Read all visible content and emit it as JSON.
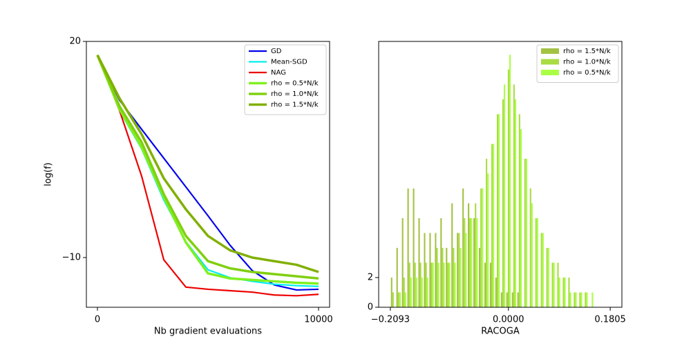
{
  "chart_data": [
    {
      "type": "line",
      "xlabel": "Nb gradient evaluations",
      "ylabel": "log(f)",
      "x": [
        0,
        1000,
        2000,
        3000,
        4000,
        5000,
        6000,
        7000,
        8000,
        9000,
        10000
      ],
      "xlim": [
        -500,
        10500
      ],
      "ylim": [
        -16.9,
        20
      ],
      "xticks": [
        0,
        10000
      ],
      "yticks": [
        {
          "value": -10,
          "label": "−10"
        },
        20
      ],
      "legend": "upper right",
      "series": [
        {
          "name": "GD",
          "color": "#0000ee",
          "values": [
            18.1,
            11.85,
            7.8,
            3.8,
            -0.2,
            -4.2,
            -8.3,
            -11.8,
            -13.8,
            -14.5,
            -14.4
          ]
        },
        {
          "name": "Mean-SGD",
          "color": "#00eeee",
          "values": [
            18.1,
            10.4,
            5.1,
            -2.0,
            -7.8,
            -11.7,
            -12.8,
            -13.3,
            -13.7,
            -13.9,
            -14.0
          ]
        },
        {
          "name": "NAG",
          "color": "#ee0000",
          "values": [
            18.1,
            10.4,
            1.3,
            -10.3,
            -14.1,
            -14.4,
            -14.6,
            -14.8,
            -15.2,
            -15.3,
            -15.1
          ]
        },
        {
          "name": "rho = 0.5*N/k",
          "color": "#80f020",
          "values": [
            18.1,
            10.6,
            5.3,
            -1.6,
            -7.9,
            -12.2,
            -12.9,
            -13.1,
            -13.3,
            -13.5,
            -13.6
          ]
        },
        {
          "name": "rho = 1.0*N/k",
          "color": "#80d010",
          "values": [
            18.1,
            11.0,
            6.0,
            -1.2,
            -7.0,
            -10.5,
            -11.5,
            -12.0,
            -12.3,
            -12.6,
            -12.9
          ]
        },
        {
          "name": "rho = 1.5*N/k",
          "color": "#80b000",
          "values": [
            18.1,
            12.1,
            7.1,
            1.0,
            -3.3,
            -7.0,
            -9.0,
            -10.0,
            -10.5,
            -11.0,
            -12.0
          ]
        }
      ]
    },
    {
      "type": "histogram",
      "xlabel": "RACOGA",
      "bins": [
        -0.2093,
        -0.1996,
        -0.1898,
        -0.1801,
        -0.1703,
        -0.1606,
        -0.1508,
        -0.1411,
        -0.1313,
        -0.1216,
        -0.1119,
        -0.1021,
        -0.0924,
        -0.0826,
        -0.0729,
        -0.0631,
        -0.0534,
        -0.0436,
        -0.0339,
        -0.0242,
        -0.0144,
        -0.0047,
        0.0051,
        0.0148,
        0.0246,
        0.0343,
        0.0441,
        0.0538,
        0.0636,
        0.0733,
        0.083,
        0.0928,
        0.1025,
        0.1123,
        0.122,
        0.1318,
        0.1415,
        0.1513,
        0.161,
        0.1708,
        0.1805
      ],
      "xlim": [
        -0.23,
        0.2012
      ],
      "ylim": [
        0,
        17.9
      ],
      "xticks": [
        {
          "value": -0.2093,
          "label": "−0.2093"
        },
        {
          "value": 0,
          "label": "0.0000"
        },
        {
          "value": 0.1805,
          "label": "0.1805"
        }
      ],
      "yticks": [
        0,
        2
      ],
      "legend": "upper right",
      "series": [
        {
          "name": "rho = 1.5*N/k",
          "color": "#a3c244",
          "values": [
            2,
            4,
            6,
            8,
            8,
            6,
            5,
            5,
            5,
            6,
            4,
            7,
            5,
            8,
            7,
            6,
            4,
            3,
            3,
            2,
            1,
            1,
            1,
            1,
            0,
            0,
            0,
            0,
            0,
            0,
            0,
            0,
            0,
            0,
            0,
            0,
            0,
            0,
            0,
            0
          ]
        },
        {
          "name": "rho = 1.0*N/k",
          "color": "#aadc44",
          "values": [
            1,
            1,
            2,
            3,
            3,
            3,
            3,
            3,
            4,
            4,
            3,
            4,
            5,
            6,
            6,
            7,
            8,
            10,
            11,
            13,
            14,
            16,
            15,
            13,
            10,
            8,
            6,
            5,
            4,
            3,
            3,
            2,
            2,
            1,
            1,
            1,
            0,
            0,
            0,
            0
          ]
        },
        {
          "name": "rho = 0.5*N/k",
          "color": "#aaff44",
          "values": [
            0,
            1,
            1,
            2,
            2,
            2,
            2,
            3,
            3,
            3,
            3,
            3,
            4,
            5,
            6,
            6,
            8,
            9,
            11,
            13,
            15,
            17,
            14,
            12,
            10,
            7,
            6,
            5,
            4,
            3,
            2,
            2,
            1,
            1,
            1,
            1,
            1,
            0,
            0,
            0
          ]
        }
      ]
    }
  ]
}
